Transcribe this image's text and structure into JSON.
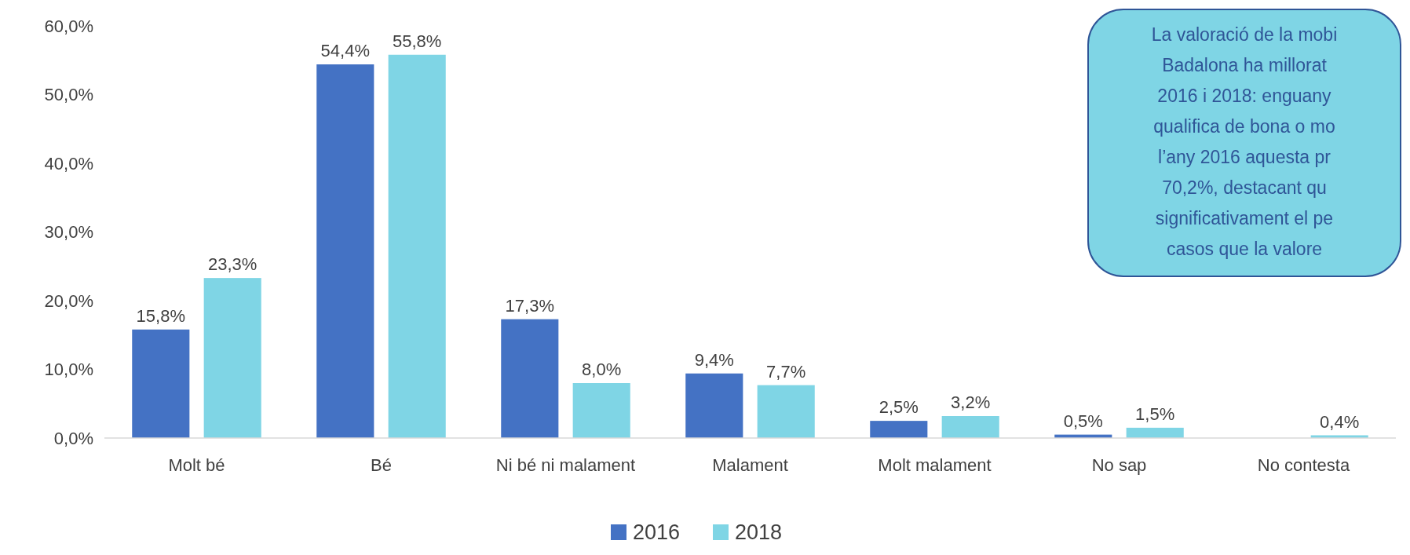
{
  "chart_data": {
    "type": "bar",
    "categories": [
      "Molt bé",
      "Bé",
      "Ni bé ni malament",
      "Malament",
      "Molt malament",
      "No sap",
      "No contesta"
    ],
    "series": [
      {
        "name": "2016",
        "color": "#4472c4",
        "values": [
          15.8,
          54.4,
          17.3,
          9.4,
          2.5,
          0.5,
          null
        ],
        "value_labels": [
          "15,8%",
          "54,4%",
          "17,3%",
          "9,4%",
          "2,5%",
          "0,5%",
          null
        ]
      },
      {
        "name": "2018",
        "color": "#7fd5e5",
        "values": [
          23.3,
          55.8,
          8.0,
          7.7,
          3.2,
          1.5,
          0.4
        ],
        "value_labels": [
          "23,3%",
          "55,8%",
          "8,0%",
          "7,7%",
          "3,2%",
          "1,5%",
          "0,4%"
        ]
      }
    ],
    "ylim": [
      0,
      60
    ],
    "yticks": [
      {
        "value": 0,
        "label": "0,0%"
      },
      {
        "value": 10,
        "label": "10,0%"
      },
      {
        "value": 20,
        "label": "20,0%"
      },
      {
        "value": 30,
        "label": "30,0%"
      },
      {
        "value": 40,
        "label": "40,0%"
      },
      {
        "value": 50,
        "label": "50,0%"
      },
      {
        "value": 60,
        "label": "60,0%"
      }
    ],
    "grid": false,
    "legend": "bottom",
    "annotations": [
      "La valoració de la mobi\nBadalona ha millorat\n2016 i 2018: enguany\nqualifica de bona o mo\nl’any  2016 aquesta pr\n70,2%, destacant qu\nsignificativament el pe\ncasos que la valore"
    ]
  }
}
